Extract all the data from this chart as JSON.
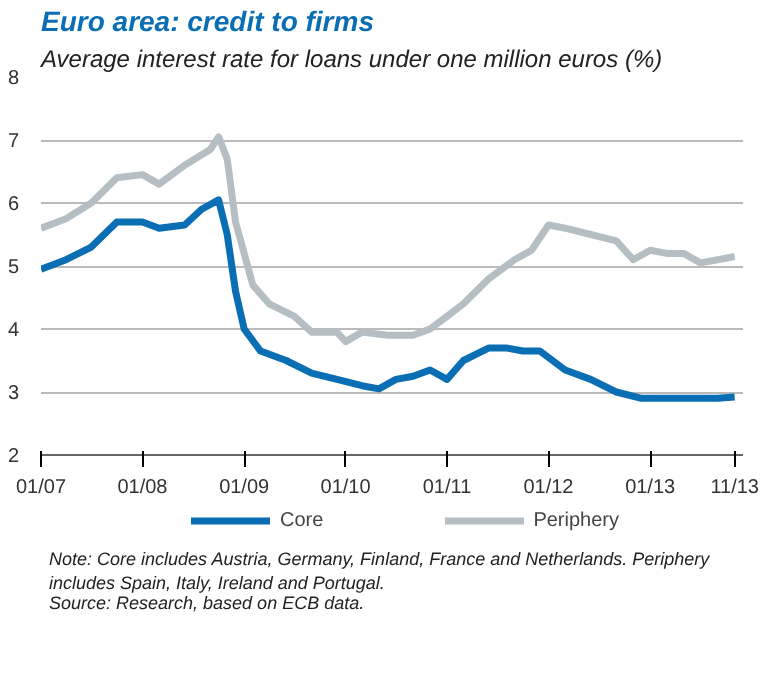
{
  "chart_data": {
    "type": "line",
    "title": "Euro area: credit to firms",
    "subtitle": "Average interest rate for loans under one million euros (%)",
    "xlim": [
      "2007-01",
      "2013-12"
    ],
    "xticks": [
      {
        "value": "2007-01",
        "label": "01/07"
      },
      {
        "value": "2008-01",
        "label": "01/08"
      },
      {
        "value": "2009-01",
        "label": "01/09"
      },
      {
        "value": "2010-01",
        "label": "01/10"
      },
      {
        "value": "2011-01",
        "label": "01/11"
      },
      {
        "value": "2012-01",
        "label": "01/12"
      },
      {
        "value": "2013-01",
        "label": "01/13"
      },
      {
        "value": "2013-11",
        "label": "11/13"
      }
    ],
    "ylim": [
      2,
      8
    ],
    "yticks": [
      2,
      3,
      4,
      5,
      6,
      7,
      8
    ],
    "grid": "y",
    "legend": "bottom",
    "series": [
      {
        "name": "Core",
        "color": "#0a6eb4",
        "x": [
          "2007-01",
          "2007-04",
          "2007-07",
          "2007-10",
          "2008-01",
          "2008-03",
          "2008-06",
          "2008-08",
          "2008-10",
          "2008-11",
          "2008-12",
          "2009-01",
          "2009-03",
          "2009-06",
          "2009-09",
          "2009-12",
          "2010-03",
          "2010-05",
          "2010-07",
          "2010-09",
          "2010-11",
          "2011-01",
          "2011-03",
          "2011-06",
          "2011-08",
          "2011-10",
          "2011-12",
          "2012-03",
          "2012-06",
          "2012-09",
          "2012-12",
          "2013-03",
          "2013-06",
          "2013-09",
          "2013-11"
        ],
        "values": [
          4.95,
          5.1,
          5.3,
          5.7,
          5.7,
          5.6,
          5.65,
          5.9,
          6.05,
          5.5,
          4.6,
          4.0,
          3.65,
          3.5,
          3.3,
          3.2,
          3.1,
          3.05,
          3.2,
          3.25,
          3.35,
          3.2,
          3.5,
          3.7,
          3.7,
          3.65,
          3.65,
          3.35,
          3.2,
          3.0,
          2.9,
          2.9,
          2.9,
          2.9,
          2.92
        ]
      },
      {
        "name": "Periphery",
        "color": "#b4bec3",
        "x": [
          "2007-01",
          "2007-04",
          "2007-07",
          "2007-10",
          "2008-01",
          "2008-03",
          "2008-06",
          "2008-09",
          "2008-10",
          "2008-11",
          "2008-12",
          "2009-02",
          "2009-04",
          "2009-07",
          "2009-09",
          "2009-12",
          "2010-01",
          "2010-03",
          "2010-06",
          "2010-09",
          "2010-11",
          "2011-01",
          "2011-03",
          "2011-06",
          "2011-09",
          "2011-11",
          "2012-01",
          "2012-03",
          "2012-06",
          "2012-09",
          "2012-11",
          "2013-01",
          "2013-03",
          "2013-05",
          "2013-07",
          "2013-09",
          "2013-11"
        ],
        "values": [
          5.6,
          5.75,
          6.0,
          6.4,
          6.45,
          6.3,
          6.6,
          6.85,
          7.05,
          6.7,
          5.7,
          4.7,
          4.4,
          4.2,
          3.95,
          3.95,
          3.8,
          3.95,
          3.9,
          3.9,
          4.0,
          4.2,
          4.4,
          4.8,
          5.1,
          5.25,
          5.65,
          5.6,
          5.5,
          5.4,
          5.1,
          5.25,
          5.2,
          5.2,
          5.05,
          5.1,
          5.15
        ]
      }
    ],
    "annotations": [
      "Note: Core includes Austria, Germany, Finland, France and Netherlands. Periphery includes Spain, Italy, Ireland and Portugal.",
      "Source: Research, based on ECB data."
    ]
  }
}
